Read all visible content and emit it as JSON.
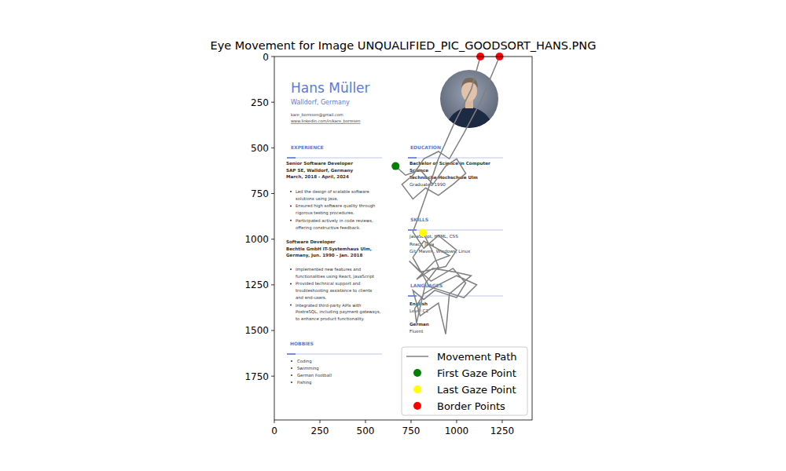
{
  "chart_data": {
    "type": "line",
    "title": "Eye Movement for Image UNQUALIFIED_PIC_GOODSORT_HANS.PNG",
    "xlim": [
      0,
      1414
    ],
    "ylim": [
      1990,
      0
    ],
    "xticks": [
      0,
      250,
      500,
      750,
      1000,
      1250
    ],
    "yticks": [
      0,
      250,
      500,
      750,
      1000,
      1250,
      1500,
      1750
    ],
    "grid": false,
    "legend": "lower right",
    "series": [
      {
        "name": "Movement Path",
        "type": "line",
        "color": "#808080",
        "x": [
          665,
          720,
          800,
          870,
          940,
          1000,
          1050,
          980,
          900,
          830,
          760,
          700,
          760,
          820,
          900,
          960,
          1040,
          1130,
          1235,
          1130,
          1080,
          980,
          900,
          860,
          790,
          760,
          820,
          900,
          1000,
          940,
          800,
          740,
          860,
          980,
          1050,
          1000,
          880,
          820,
          760,
          800,
          900,
          940,
          960,
          1080,
          990,
          870,
          780,
          880,
          960,
          820,
          760,
          850,
          1040,
          1110,
          1000,
          900,
          820,
          770,
          780,
          830,
          900,
          860,
          815
        ],
        "values": [
          600,
          650,
          620,
          700,
          600,
          560,
          640,
          700,
          760,
          720,
          780,
          700,
          650,
          560,
          520,
          560,
          420,
          250,
          0,
          0,
          180,
          380,
          560,
          680,
          880,
          960,
          1050,
          980,
          1060,
          1150,
          1180,
          1120,
          1230,
          1160,
          1240,
          1320,
          1280,
          1330,
          1280,
          1420,
          1350,
          1520,
          1300,
          1200,
          1180,
          1160,
          1220,
          1120,
          1090,
          1010,
          1100,
          1260,
          1320,
          1250,
          1200,
          1250,
          1300,
          1380,
          1460,
          1240,
          1150,
          1050,
          965
        ]
      },
      {
        "name": "First Gaze Point",
        "type": "scatter",
        "color": "#008000",
        "marker": "circle",
        "x": [
          665
        ],
        "values": [
          600
        ]
      },
      {
        "name": "Last Gaze Point",
        "type": "scatter",
        "color": "#ffff00",
        "marker": "circle",
        "x": [
          815
        ],
        "values": [
          965
        ]
      },
      {
        "name": "Border Points",
        "type": "scatter",
        "color": "#ff0000",
        "marker": "circle",
        "x": [
          1130,
          1235
        ],
        "values": [
          0,
          0
        ]
      }
    ]
  },
  "background_image": {
    "name": "Hans Müller",
    "location": "Walldorf, Germany",
    "email": "kare_borresen@gmail.com",
    "linkedin": "www.linkedin.com/in/kare_borresen",
    "experience": {
      "heading": "EXPERIENCE",
      "jobs": [
        {
          "title": "Senior Software Developer",
          "company": "SAP SE, Walldorf, Germany",
          "dates": "March, 2018 - April, 2024",
          "bullets": [
            [
              "Led the design of scalable software",
              "solutions using Java."
            ],
            [
              "Ensured high software quality through",
              "rigorous testing procedures."
            ],
            [
              "Participated actively in code reviews,",
              "offering constructive feedback."
            ]
          ]
        },
        {
          "title": "Software Developer",
          "company": "Bechtle GmbH IT-Systemhaus Ulm,",
          "dates": "Germany, Jun. 1990 - Jan. 2018",
          "bullets": [
            [
              "Implemented new features and",
              "functionalities using React, JavaScript"
            ],
            [
              "Provided technical support and",
              "troubleshooting assistance to clients",
              "and end-users."
            ],
            [
              "Integrated third-party APIs with",
              "PostreSQL, including payment gateways,",
              "to enhance product functionality."
            ]
          ]
        }
      ]
    },
    "education": {
      "heading": "EDUCATION",
      "lines": [
        "Bachelor of Science in Computer",
        "Science",
        "Technische Hochschule Ulm",
        "Graduated 1990"
      ]
    },
    "skills": {
      "heading": "SKILLS",
      "lines": [
        "JavaScript, HTML, CSS",
        "React, Java",
        "Git, Maven, Windows, Linux"
      ]
    },
    "languages": {
      "heading": "LANGUAGES",
      "items": [
        {
          "language": "English",
          "level": "Level C1"
        },
        {
          "language": "German",
          "level": "Fluent"
        }
      ]
    },
    "hobbies": {
      "heading": "HOBBIES",
      "items": [
        "Coding",
        "Swimming",
        "German Football",
        "Fishing"
      ]
    }
  }
}
